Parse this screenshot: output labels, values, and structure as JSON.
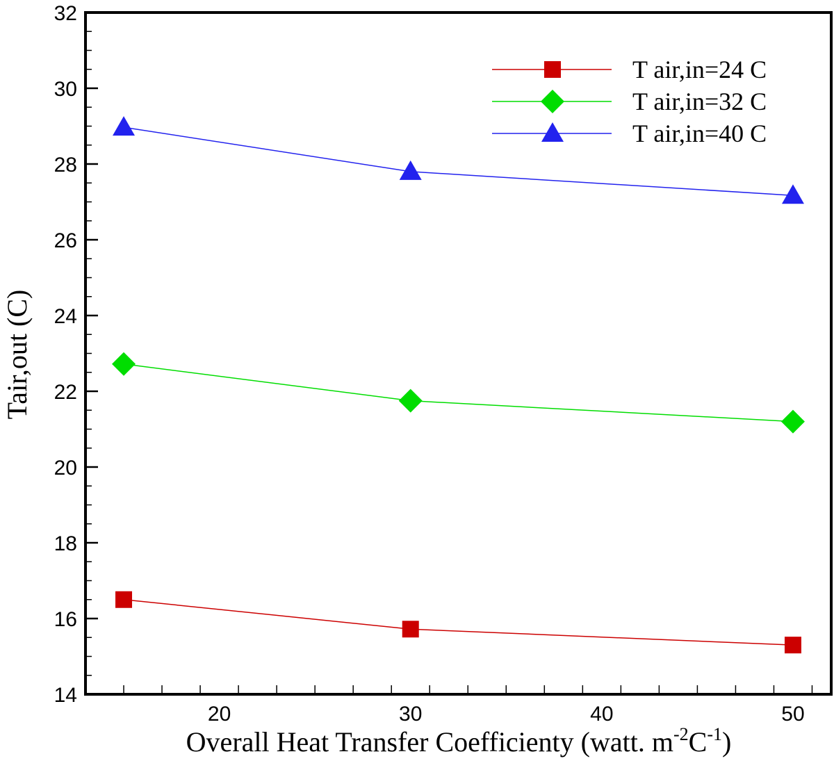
{
  "chart_data": {
    "type": "line",
    "xlabel": "Overall Heat Transfer Coefficienty (watt. m",
    "xlabel_sup1": "-2",
    "xlabel_mid": "C",
    "xlabel_sup2": "-1",
    "xlabel_end": ")",
    "ylabel": "Tair,out (C)",
    "xlim": [
      13,
      52
    ],
    "ylim": [
      14,
      32
    ],
    "xticks": [
      20,
      30,
      40,
      50
    ],
    "yticks": [
      14,
      16,
      18,
      20,
      22,
      24,
      26,
      28,
      30,
      32
    ],
    "grid": false,
    "legend_position": "top-right",
    "series": [
      {
        "name": "T air,in=24 C",
        "color": "#cc0000",
        "marker": "square",
        "x": [
          15,
          30,
          50
        ],
        "y": [
          16.5,
          15.72,
          15.3
        ]
      },
      {
        "name": "T air,in=32 C",
        "color": "#00dd00",
        "marker": "diamond",
        "x": [
          15,
          30,
          50
        ],
        "y": [
          22.72,
          21.75,
          21.2
        ]
      },
      {
        "name": "T air,in=40 C",
        "color": "#2222ee",
        "marker": "triangle",
        "x": [
          15,
          30,
          50
        ],
        "y": [
          28.97,
          27.8,
          27.17
        ]
      }
    ]
  }
}
